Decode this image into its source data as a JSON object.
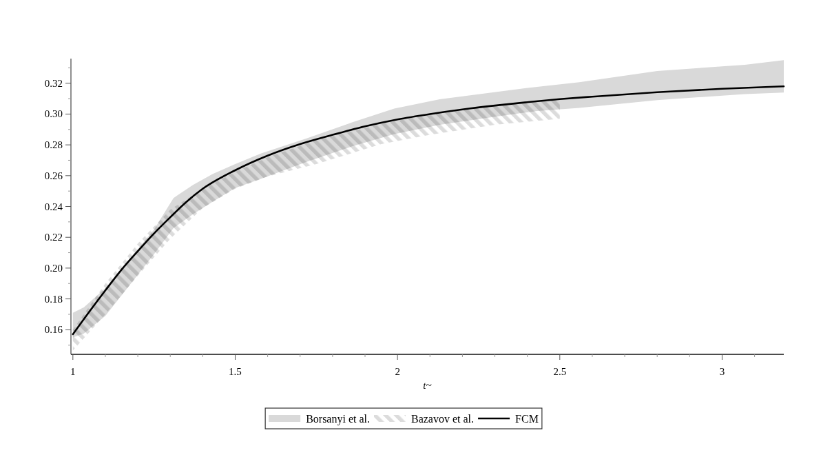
{
  "chart_data": {
    "type": "line",
    "xlabel": "t~",
    "xlim": [
      0.994,
      3.19
    ],
    "ylim": [
      0.144,
      0.336
    ],
    "xticks": [
      1,
      {
        "value": 1.1,
        "label": null
      },
      {
        "value": 1.2,
        "label": null
      },
      {
        "value": 1.3,
        "label": null
      },
      {
        "value": 1.4,
        "label": null
      },
      1.5,
      {
        "value": 1.6,
        "label": null
      },
      {
        "value": 1.7,
        "label": null
      },
      {
        "value": 1.8,
        "label": null
      },
      {
        "value": 1.9,
        "label": null
      },
      2,
      {
        "value": 2.1,
        "label": null
      },
      {
        "value": 2.2,
        "label": null
      },
      {
        "value": 2.3,
        "label": null
      },
      {
        "value": 2.4,
        "label": null
      },
      2.5,
      {
        "value": 2.6,
        "label": null
      },
      {
        "value": 2.7,
        "label": null
      },
      {
        "value": 2.8,
        "label": null
      },
      {
        "value": 2.9,
        "label": null
      },
      3,
      {
        "value": 3.1,
        "label": null
      }
    ],
    "yticks": [
      {
        "value": 0.15,
        "label": null
      },
      0.16,
      {
        "value": 0.17,
        "label": null
      },
      0.18,
      {
        "value": 0.19,
        "label": null
      },
      {
        "value": 0.2,
        "label": "0.20"
      },
      {
        "value": 0.21,
        "label": null
      },
      0.22,
      {
        "value": 0.23,
        "label": null
      },
      0.24,
      {
        "value": 0.25,
        "label": null
      },
      0.26,
      {
        "value": 0.27,
        "label": null
      },
      0.28,
      {
        "value": 0.29,
        "label": null
      },
      {
        "value": 0.3,
        "label": "0.30"
      },
      {
        "value": 0.31,
        "label": null
      },
      0.32,
      {
        "value": 0.33,
        "label": null
      }
    ],
    "legend": "bottom",
    "series": [
      {
        "name": "Borsanyi et al.",
        "type": "area",
        "color": "#d9d9d9",
        "x": [
          1,
          1.034,
          1.1,
          1.25,
          1.31,
          1.37,
          1.43,
          1.5,
          1.58,
          1.72,
          1.86,
          1.99,
          2.13,
          2.29,
          2.43,
          2.56,
          2.8,
          3.07,
          3.19
        ],
        "values": [
          null,
          null,
          null,
          null,
          null,
          null,
          null,
          null,
          null,
          null,
          null,
          null,
          null,
          null,
          null,
          null,
          null,
          null,
          null
        ],
        "upper": [
          0.171,
          0.1745,
          0.187,
          0.225,
          0.2455,
          0.254,
          0.261,
          0.2675,
          0.2745,
          0.2842,
          0.2946,
          0.3036,
          0.3096,
          0.314,
          0.3177,
          0.3207,
          0.328,
          0.332,
          0.335
        ],
        "lower": [
          0.155,
          0.1575,
          0.169,
          0.209,
          0.226,
          0.235,
          0.243,
          0.252,
          0.258,
          0.269,
          0.279,
          0.287,
          0.293,
          0.298,
          0.302,
          0.304,
          0.309,
          0.313,
          0.314
        ]
      },
      {
        "name": "Bazavov et al.",
        "type": "area",
        "color": "#dcdcdc",
        "x": [
          1,
          1.1,
          1.2,
          1.3,
          1.4,
          1.5,
          1.6,
          1.75,
          1.95,
          2.1,
          2.3,
          2.5
        ],
        "values": [
          null,
          null,
          null,
          null,
          null,
          null,
          null,
          null,
          null,
          null,
          null,
          null
        ],
        "upper": [
          0.16,
          0.19,
          0.216,
          0.238,
          0.2515,
          0.2625,
          0.272,
          0.283,
          0.2935,
          0.3,
          0.306,
          0.3095
        ],
        "lower": [
          0.1465,
          0.17,
          0.195,
          0.219,
          0.239,
          0.2515,
          0.2595,
          0.2675,
          0.2805,
          0.2865,
          0.293,
          0.297
        ]
      },
      {
        "name": "FCM",
        "type": "line",
        "color": "#000000",
        "x": [
          1,
          1.05,
          1.1,
          1.15,
          1.2,
          1.25,
          1.3,
          1.35,
          1.4,
          1.5,
          1.6,
          1.7,
          1.8,
          1.9,
          2,
          2.1,
          2.2,
          2.3,
          2.4,
          2.5,
          2.6,
          2.8,
          3,
          3.19
        ],
        "values": [
          0.157,
          0.1715,
          0.1855,
          0.199,
          0.211,
          0.2225,
          0.233,
          0.243,
          0.2515,
          0.2635,
          0.273,
          0.2805,
          0.2865,
          0.292,
          0.2965,
          0.3,
          0.303,
          0.3055,
          0.3077,
          0.3097,
          0.3113,
          0.3142,
          0.3164,
          0.318
        ]
      }
    ]
  }
}
